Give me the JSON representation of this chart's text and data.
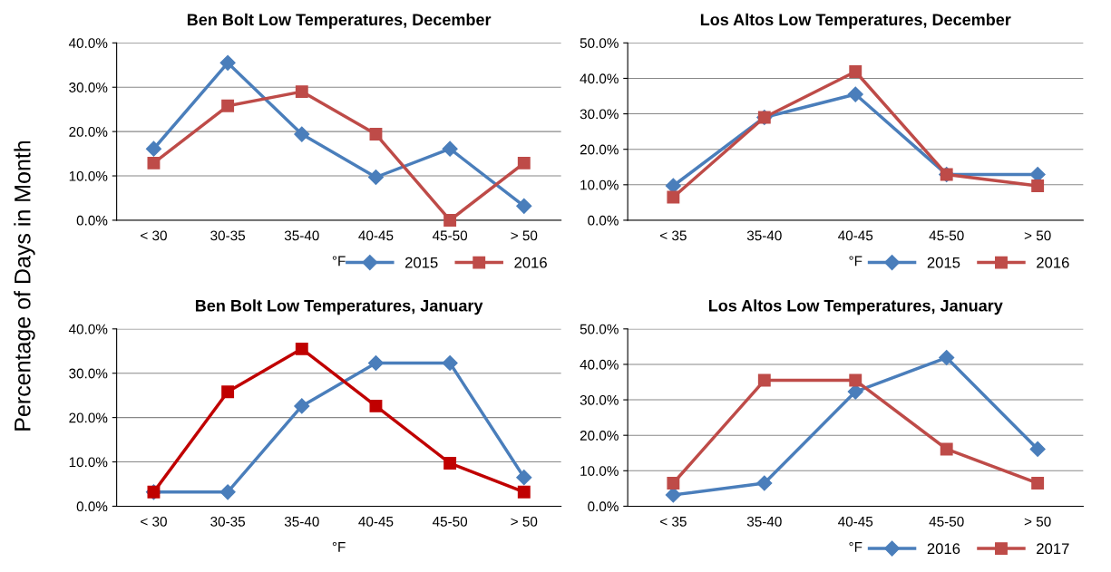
{
  "chart_data": [
    {
      "type": "line",
      "title": "Ben Bolt Low Temperatures, December",
      "xlabel": "°F",
      "ylabel": "Percentage of Days in Month",
      "categories": [
        "< 30",
        "30-35",
        "35-40",
        "40-45",
        "45-50",
        "> 50"
      ],
      "series": [
        {
          "name": "2015",
          "color": "#4a7ebb",
          "marker": "diamond",
          "values": [
            16.1,
            35.5,
            19.4,
            9.7,
            16.1,
            3.2
          ]
        },
        {
          "name": "2016",
          "color": "#be4b48",
          "marker": "square",
          "values": [
            12.9,
            25.8,
            29.0,
            19.4,
            0,
            12.9
          ]
        }
      ],
      "ylim": [
        0,
        40
      ],
      "yticks": [
        {
          "value": 0,
          "label": "0.0%"
        },
        {
          "value": 10,
          "label": "10.0%"
        },
        {
          "value": 20,
          "label": "20.0%"
        },
        {
          "value": 30,
          "label": "30.0%"
        },
        {
          "value": 40,
          "label": "40.0%"
        }
      ],
      "grid": "y",
      "legend": "bottom right"
    },
    {
      "type": "line",
      "title": "Los Altos Low Temperatures, December",
      "xlabel": "°F",
      "categories": [
        "< 35",
        "35-40",
        "40-45",
        "45-50",
        "> 50"
      ],
      "series": [
        {
          "name": "2015",
          "color": "#4a7ebb",
          "marker": "diamond",
          "values": [
            9.7,
            29.0,
            35.5,
            12.9,
            12.9
          ]
        },
        {
          "name": "2016",
          "color": "#be4b48",
          "marker": "square",
          "values": [
            6.5,
            29.0,
            41.9,
            12.9,
            9.7
          ]
        }
      ],
      "ylim": [
        0,
        50
      ],
      "yticks": [
        {
          "value": 0,
          "label": "0.0%"
        },
        {
          "value": 10,
          "label": "10.0%"
        },
        {
          "value": 20,
          "label": "20.0%"
        },
        {
          "value": 30,
          "label": "30.0%"
        },
        {
          "value": 40,
          "label": "40.0%"
        },
        {
          "value": 50,
          "label": "50.0%"
        }
      ],
      "grid": "y",
      "legend": "bottom right"
    },
    {
      "type": "line",
      "title": "Ben Bolt Low Temperatures, January",
      "xlabel": "°F",
      "categories": [
        "< 30",
        "30-35",
        "35-40",
        "40-45",
        "45-50",
        "> 50"
      ],
      "series": [
        {
          "color": "#4a7ebb",
          "marker": "diamond",
          "values": [
            3.2,
            3.2,
            22.6,
            32.3,
            32.3,
            6.5
          ]
        },
        {
          "color": "#c00000",
          "marker": "square",
          "values": [
            3.2,
            25.8,
            35.5,
            22.6,
            9.7,
            3.2
          ]
        }
      ],
      "ylim": [
        0,
        40
      ],
      "yticks": [
        {
          "value": 0,
          "label": "0.0%"
        },
        {
          "value": 10,
          "label": "10.0%"
        },
        {
          "value": 20,
          "label": "20.0%"
        },
        {
          "value": 30,
          "label": "30.0%"
        },
        {
          "value": 40,
          "label": "40.0%"
        }
      ],
      "grid": "y"
    },
    {
      "type": "line",
      "title": "Los Altos Low Temperatures, January",
      "xlabel": "°F",
      "categories": [
        "< 35",
        "35-40",
        "40-45",
        "45-50",
        "> 50"
      ],
      "series": [
        {
          "name": "2016",
          "color": "#4a7ebb",
          "marker": "diamond",
          "values": [
            3.2,
            6.5,
            32.3,
            41.9,
            16.1
          ]
        },
        {
          "name": "2017",
          "color": "#be4b48",
          "marker": "square",
          "values": [
            6.5,
            35.5,
            35.5,
            16.1,
            6.5
          ]
        }
      ],
      "ylim": [
        0,
        50
      ],
      "yticks": [
        {
          "value": 0,
          "label": "0.0%"
        },
        {
          "value": 10,
          "label": "10.0%"
        },
        {
          "value": 20,
          "label": "20.0%"
        },
        {
          "value": 30,
          "label": "30.0%"
        },
        {
          "value": 40,
          "label": "40.0%"
        },
        {
          "value": 50,
          "label": "50.0%"
        }
      ],
      "grid": "y",
      "legend": "bottom right"
    }
  ]
}
